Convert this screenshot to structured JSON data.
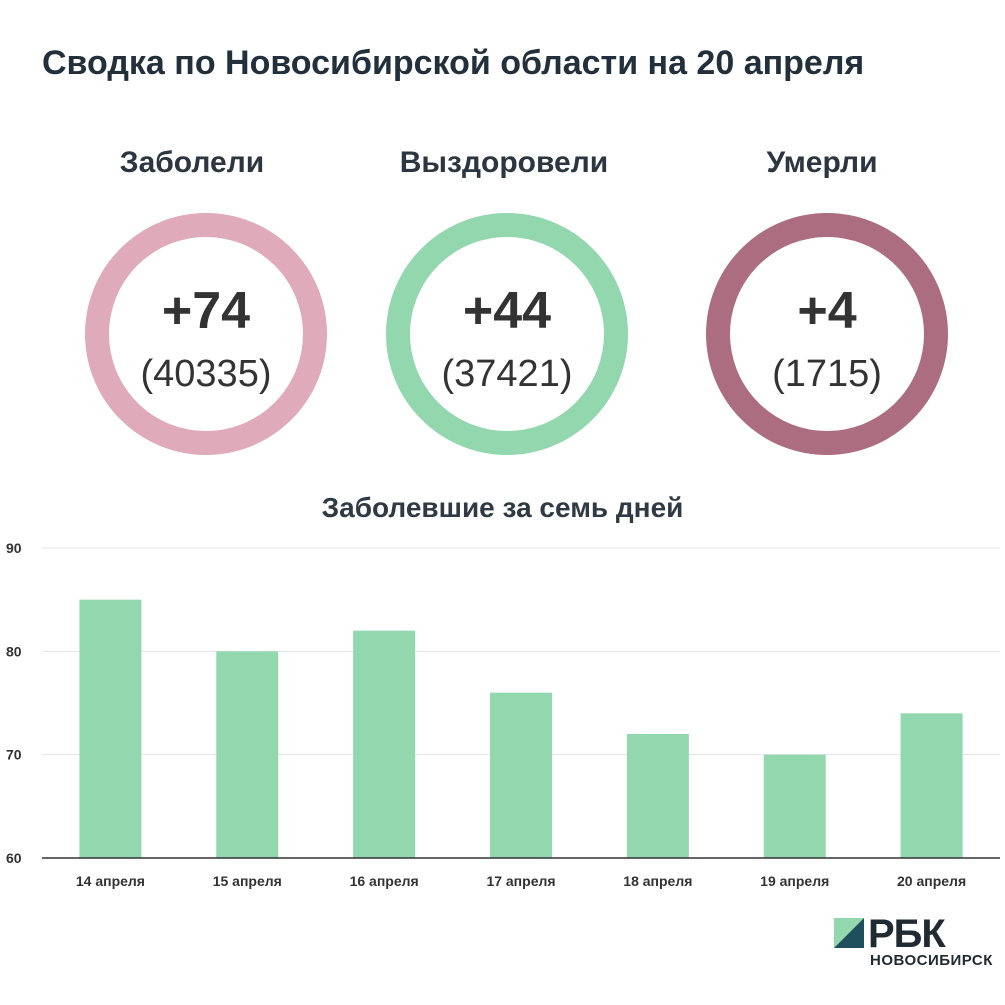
{
  "title": "Сводка по Новосибирской области на 20 апреля",
  "stats": [
    {
      "label": "Заболели",
      "delta": "+74",
      "total": "(40335)",
      "color": "#dfaab9"
    },
    {
      "label": "Выздоровели",
      "delta": "+44",
      "total": "(37421)",
      "color": "#93d7ae"
    },
    {
      "label": "Умерли",
      "delta": "+4",
      "total": "(1715)",
      "color": "#ac6d81"
    }
  ],
  "logo": {
    "name": "РБК",
    "city": "НОВОСИБИРСК",
    "mark_colors": [
      "#93d7ae",
      "#1f4e5c"
    ]
  },
  "chart_data": {
    "type": "bar",
    "title": "Заболевшие за семь дней",
    "categories": [
      "14 апреля",
      "15 апреля",
      "16 апреля",
      "17 апреля",
      "18 апреля",
      "19 апреля",
      "20 апреля"
    ],
    "values": [
      85,
      80,
      82,
      76,
      72,
      70,
      74
    ],
    "ylim": [
      60,
      90
    ],
    "yticks": [
      60,
      70,
      80,
      90
    ],
    "grid": true,
    "bar_color": "#93d7ae",
    "xlabel": "",
    "ylabel": ""
  }
}
